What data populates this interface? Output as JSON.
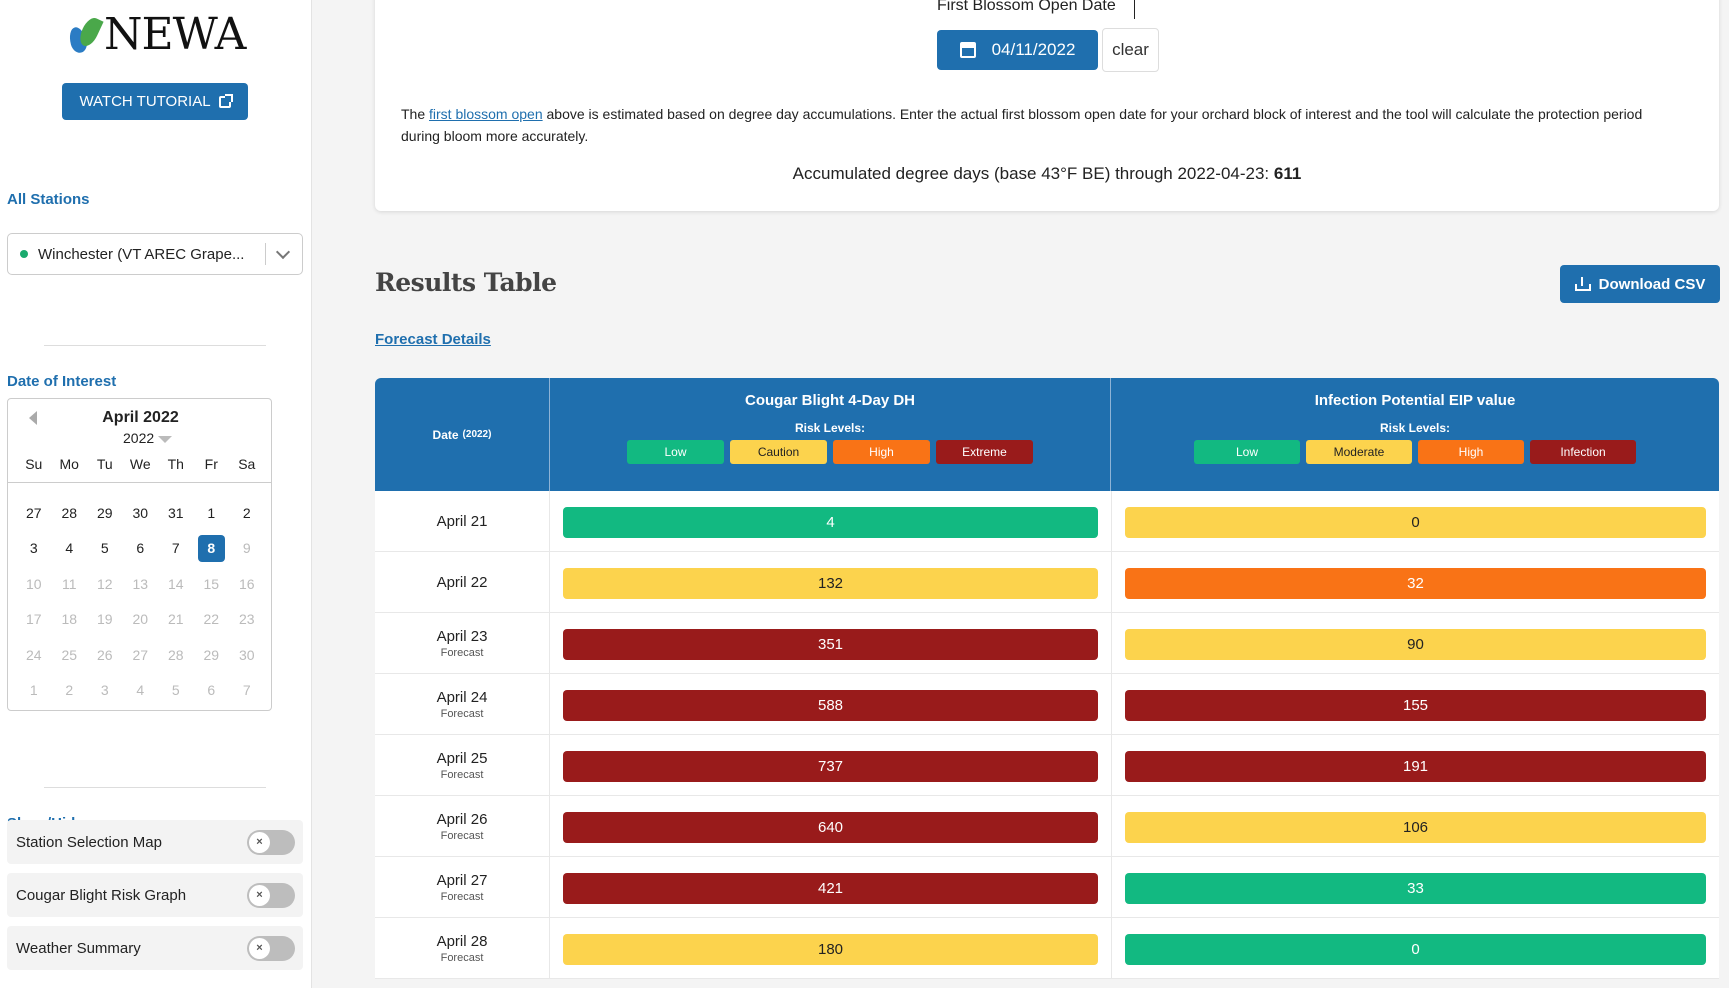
{
  "logo": {
    "text": "NEWA"
  },
  "sidebar": {
    "tutorial_label": "WATCH TUTORIAL",
    "stations_label": "All Stations",
    "station_selected": "Winchester (VT AREC Grape...",
    "date_label": "Date of Interest",
    "calendar": {
      "month": "April 2022",
      "year": "2022",
      "dow": [
        "Su",
        "Mo",
        "Tu",
        "We",
        "Th",
        "Fr",
        "Sa"
      ],
      "days": [
        {
          "d": "27",
          "s": "n"
        },
        {
          "d": "28",
          "s": "n"
        },
        {
          "d": "29",
          "s": "n"
        },
        {
          "d": "30",
          "s": "n"
        },
        {
          "d": "31",
          "s": "n"
        },
        {
          "d": "1",
          "s": "n"
        },
        {
          "d": "2",
          "s": "n"
        },
        {
          "d": "3",
          "s": "n"
        },
        {
          "d": "4",
          "s": "n"
        },
        {
          "d": "5",
          "s": "n"
        },
        {
          "d": "6",
          "s": "n"
        },
        {
          "d": "7",
          "s": "n"
        },
        {
          "d": "8",
          "s": "sel"
        },
        {
          "d": "9",
          "s": "dim"
        },
        {
          "d": "10",
          "s": "dim"
        },
        {
          "d": "11",
          "s": "dim"
        },
        {
          "d": "12",
          "s": "dim"
        },
        {
          "d": "13",
          "s": "dim"
        },
        {
          "d": "14",
          "s": "dim"
        },
        {
          "d": "15",
          "s": "dim"
        },
        {
          "d": "16",
          "s": "dim"
        },
        {
          "d": "17",
          "s": "dim"
        },
        {
          "d": "18",
          "s": "dim"
        },
        {
          "d": "19",
          "s": "dim"
        },
        {
          "d": "20",
          "s": "dim"
        },
        {
          "d": "21",
          "s": "dim"
        },
        {
          "d": "22",
          "s": "dim"
        },
        {
          "d": "23",
          "s": "dim"
        },
        {
          "d": "24",
          "s": "dim"
        },
        {
          "d": "25",
          "s": "dim"
        },
        {
          "d": "26",
          "s": "dim"
        },
        {
          "d": "27",
          "s": "dim"
        },
        {
          "d": "28",
          "s": "dim"
        },
        {
          "d": "29",
          "s": "dim"
        },
        {
          "d": "30",
          "s": "dim"
        },
        {
          "d": "1",
          "s": "dim"
        },
        {
          "d": "2",
          "s": "dim"
        },
        {
          "d": "3",
          "s": "dim"
        },
        {
          "d": "4",
          "s": "dim"
        },
        {
          "d": "5",
          "s": "dim"
        },
        {
          "d": "6",
          "s": "dim"
        },
        {
          "d": "7",
          "s": "dim"
        }
      ]
    },
    "showhide_label": "Show/Hide",
    "toggles": [
      {
        "label": "Station Selection Map",
        "knob": "×"
      },
      {
        "label": "Cougar Blight Risk Graph",
        "knob": "×"
      },
      {
        "label": "Weather Summary",
        "knob": "×"
      }
    ]
  },
  "top": {
    "fb_label": "First Blossom Open Date",
    "fb_date": "04/11/2022",
    "clear_label": "clear",
    "info_pre": "The ",
    "info_link": "first blossom open",
    "info_post": " above is estimated based on degree day accumulations. Enter the actual first blossom open date for your orchard block of interest and the tool will calculate the protection period during bloom more accurately.",
    "accum_text": "Accumulated degree days (base 43°F BE) through 2022-04-23: ",
    "accum_value": "611"
  },
  "results": {
    "title": "Results Table",
    "csv_label": "Download CSV",
    "forecast_link": "Forecast Details"
  },
  "table": {
    "date_header": "Date",
    "date_year": "(2022)",
    "col1": {
      "title": "Cougar Blight 4-Day DH",
      "risk_label": "Risk Levels:",
      "levels": [
        {
          "label": "Low",
          "cls": "lv-green"
        },
        {
          "label": "Caution",
          "cls": "lv-yellow"
        },
        {
          "label": "High",
          "cls": "lv-orange"
        },
        {
          "label": "Extreme",
          "cls": "lv-red"
        }
      ]
    },
    "col2": {
      "title": "Infection Potential EIP value",
      "risk_label": "Risk Levels:",
      "levels": [
        {
          "label": "Low",
          "cls": "lv-green"
        },
        {
          "label": "Moderate",
          "cls": "lv-yellow"
        },
        {
          "label": "High",
          "cls": "lv-orange"
        },
        {
          "label": "Infection",
          "cls": "lv-red"
        }
      ]
    },
    "rows": [
      {
        "date": "April 21",
        "sub": "",
        "v1": "4",
        "c1": "lv-green",
        "v2": "0",
        "c2": "lv-yellow"
      },
      {
        "date": "April 22",
        "sub": "",
        "v1": "132",
        "c1": "lv-yellow",
        "v2": "32",
        "c2": "lv-orange"
      },
      {
        "date": "April 23",
        "sub": "Forecast",
        "v1": "351",
        "c1": "lv-red",
        "v2": "90",
        "c2": "lv-yellow"
      },
      {
        "date": "April 24",
        "sub": "Forecast",
        "v1": "588",
        "c1": "lv-red",
        "v2": "155",
        "c2": "lv-red"
      },
      {
        "date": "April 25",
        "sub": "Forecast",
        "v1": "737",
        "c1": "lv-red",
        "v2": "191",
        "c2": "lv-red"
      },
      {
        "date": "April 26",
        "sub": "Forecast",
        "v1": "640",
        "c1": "lv-red",
        "v2": "106",
        "c2": "lv-yellow"
      },
      {
        "date": "April 27",
        "sub": "Forecast",
        "v1": "421",
        "c1": "lv-red",
        "v2": "33",
        "c2": "lv-green"
      },
      {
        "date": "April 28",
        "sub": "Forecast",
        "v1": "180",
        "c1": "lv-yellow",
        "v2": "0",
        "c2": "lv-green"
      }
    ]
  },
  "colors": {
    "brand_blue": "#1f6fae",
    "low": "#12b981",
    "caution": "#fcd34d",
    "high": "#f97316",
    "extreme": "#991b1b"
  }
}
